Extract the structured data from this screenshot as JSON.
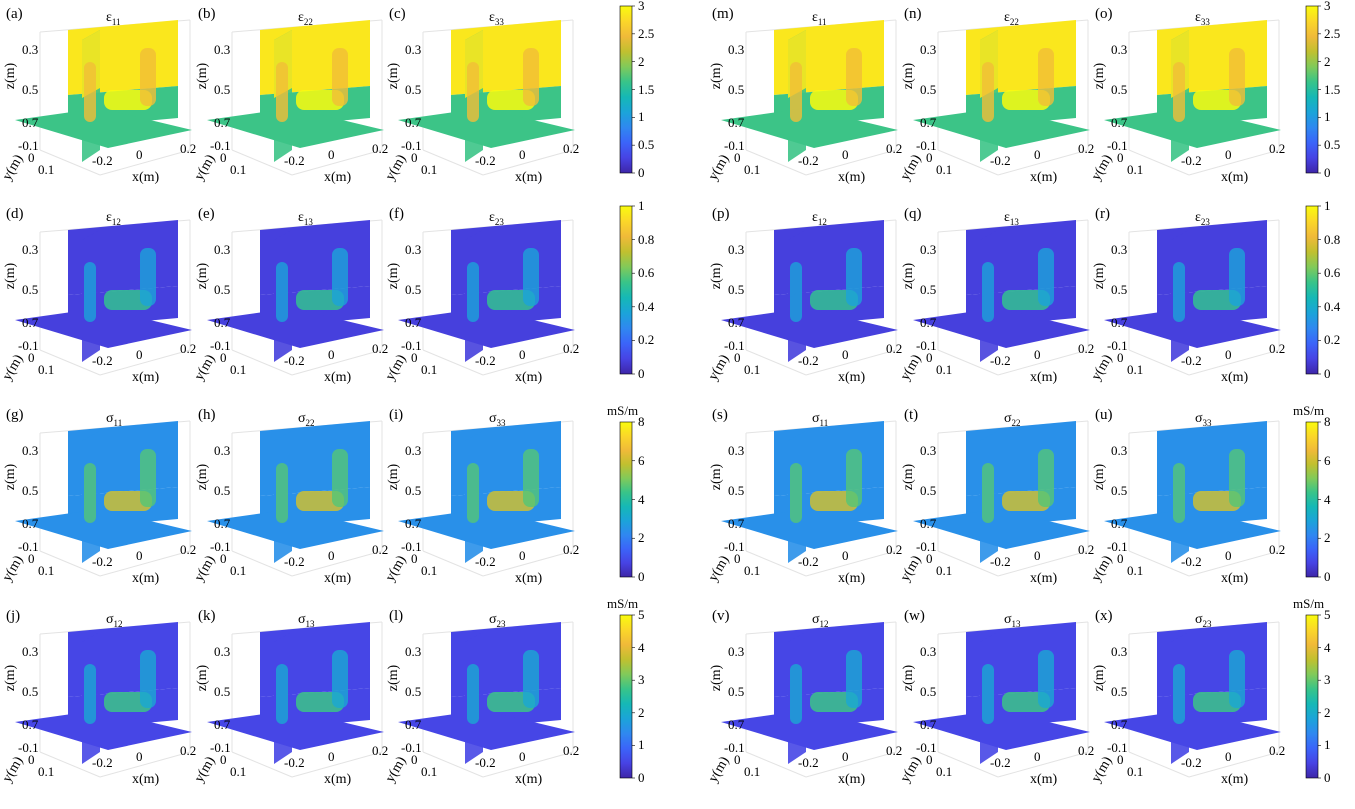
{
  "chart_data": {
    "type": "heatmap",
    "description_panels": [
      {
        "label": "(a)",
        "title": "ε",
        "sub": "11",
        "row": 0,
        "col": 0
      },
      {
        "label": "(b)",
        "title": "ε",
        "sub": "22",
        "row": 0,
        "col": 1
      },
      {
        "label": "(c)",
        "title": "ε",
        "sub": "33",
        "row": 0,
        "col": 2
      },
      {
        "label": "(d)",
        "title": "ε",
        "sub": "12",
        "row": 1,
        "col": 0
      },
      {
        "label": "(e)",
        "title": "ε",
        "sub": "13",
        "row": 1,
        "col": 1
      },
      {
        "label": "(f)",
        "title": "ε",
        "sub": "23",
        "row": 1,
        "col": 2
      },
      {
        "label": "(g)",
        "title": "σ",
        "sub": "11",
        "row": 2,
        "col": 0
      },
      {
        "label": "(h)",
        "title": "σ",
        "sub": "22",
        "row": 2,
        "col": 1
      },
      {
        "label": "(i)",
        "title": "σ",
        "sub": "33",
        "row": 2,
        "col": 2
      },
      {
        "label": "(j)",
        "title": "σ",
        "sub": "12",
        "row": 3,
        "col": 0
      },
      {
        "label": "(k)",
        "title": "σ",
        "sub": "13",
        "row": 3,
        "col": 1
      },
      {
        "label": "(l)",
        "title": "σ",
        "sub": "23",
        "row": 3,
        "col": 2
      },
      {
        "label": "(m)",
        "title": "ε",
        "sub": "11",
        "row": 0,
        "col": 3
      },
      {
        "label": "(n)",
        "title": "ε",
        "sub": "22",
        "row": 0,
        "col": 4
      },
      {
        "label": "(o)",
        "title": "ε",
        "sub": "33",
        "row": 0,
        "col": 5
      },
      {
        "label": "(p)",
        "title": "ε",
        "sub": "12",
        "row": 1,
        "col": 3
      },
      {
        "label": "(q)",
        "title": "ε",
        "sub": "13",
        "row": 1,
        "col": 4
      },
      {
        "label": "(r)",
        "title": "ε",
        "sub": "23",
        "row": 1,
        "col": 5
      },
      {
        "label": "(s)",
        "title": "σ",
        "sub": "11",
        "row": 2,
        "col": 3
      },
      {
        "label": "(t)",
        "title": "σ",
        "sub": "22",
        "row": 2,
        "col": 4
      },
      {
        "label": "(u)",
        "title": "σ",
        "sub": "33",
        "row": 2,
        "col": 5
      },
      {
        "label": "(v)",
        "title": "σ",
        "sub": "12",
        "row": 3,
        "col": 3
      },
      {
        "label": "(w)",
        "title": "σ",
        "sub": "13",
        "row": 3,
        "col": 4
      },
      {
        "label": "(x)",
        "title": "σ",
        "sub": "23",
        "row": 3,
        "col": 5
      }
    ],
    "axes": {
      "z_label": "z(m)",
      "z_ticks": [
        "0.3",
        "0.5",
        "0.7"
      ],
      "y_label": "y(m)",
      "y_ticks": [
        "-0.1",
        "0",
        "0.1"
      ],
      "x_label": "x(m)",
      "x_ticks": [
        "-0.2",
        "0",
        "0.2"
      ]
    },
    "colorbars": [
      {
        "row": 0,
        "ticks": [
          "0",
          "0.5",
          "1",
          "1.5",
          "2",
          "2.5",
          "3"
        ],
        "range": [
          0,
          3
        ],
        "unit": ""
      },
      {
        "row": 1,
        "ticks": [
          "0",
          "0.2",
          "0.4",
          "0.6",
          "0.8",
          "1"
        ],
        "range": [
          0,
          1
        ],
        "unit": ""
      },
      {
        "row": 2,
        "ticks": [
          "0",
          "2",
          "4",
          "6",
          "8"
        ],
        "range": [
          0,
          8
        ],
        "unit": "mS/m"
      },
      {
        "row": 3,
        "ticks": [
          "0",
          "1",
          "2",
          "3",
          "4",
          "5"
        ],
        "range": [
          0,
          5
        ],
        "unit": "mS/m"
      }
    ],
    "row_background_levels": [
      {
        "top": 0.95,
        "bottom": 0.55,
        "notes": "diagonal eps: upper ~3 (yellow) lower ~1.5-2 (teal)"
      },
      {
        "top": 0.08,
        "bottom": 0.08
      },
      {
        "top": 0.3,
        "bottom": 0.3
      },
      {
        "top": 0.1,
        "bottom": 0.1
      }
    ],
    "colormap": [
      "#3e26a8",
      "#4743e4",
      "#3b64f9",
      "#2f88f0",
      "#1ba4d9",
      "#15b8b6",
      "#38c489",
      "#81ca5a",
      "#c1c02f",
      "#f0ba39",
      "#fbd729",
      "#f9fb0e"
    ]
  }
}
